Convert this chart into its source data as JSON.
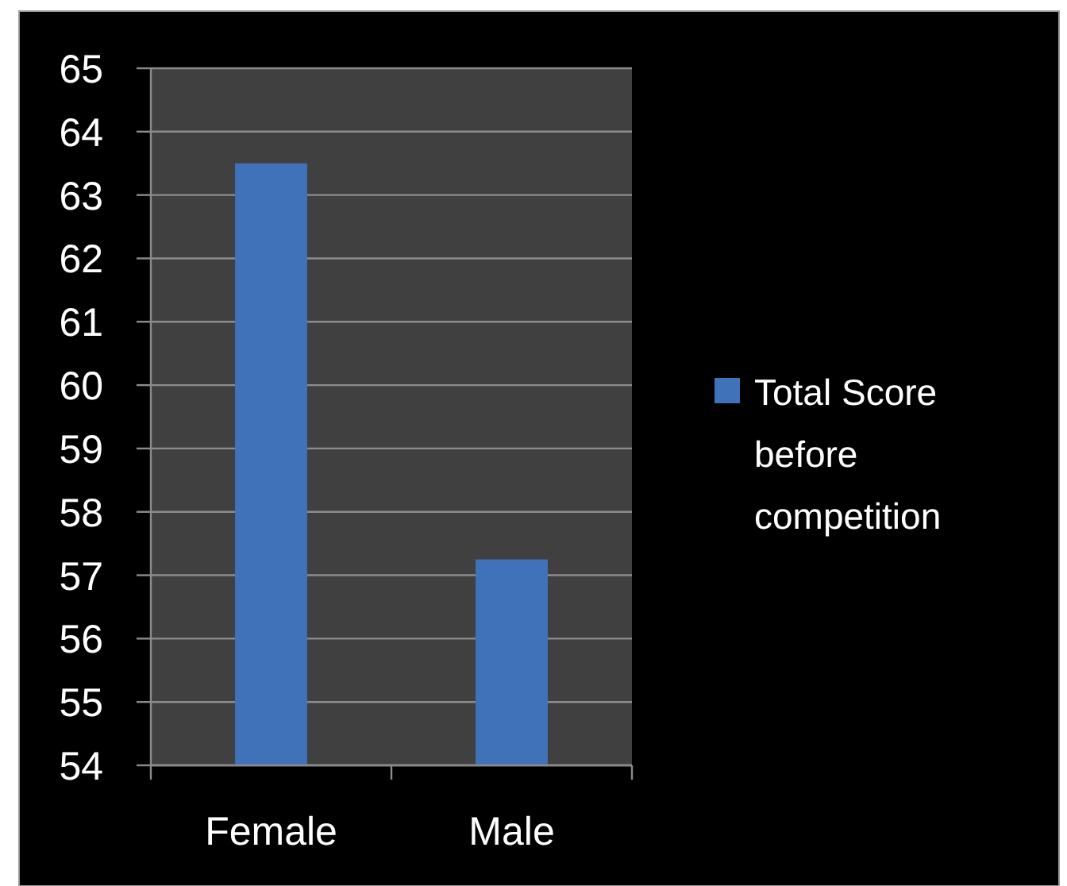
{
  "chart_data": {
    "type": "bar",
    "categories": [
      "Female",
      "Male"
    ],
    "series": [
      {
        "name": "Total Score before competition",
        "color": "#3f72b8",
        "values": [
          63.5,
          57.25
        ]
      }
    ],
    "ylim": [
      54,
      65
    ],
    "yticks": [
      54,
      55,
      56,
      57,
      58,
      59,
      60,
      61,
      62,
      63,
      64,
      65
    ],
    "grid": "y",
    "legend": "right"
  }
}
